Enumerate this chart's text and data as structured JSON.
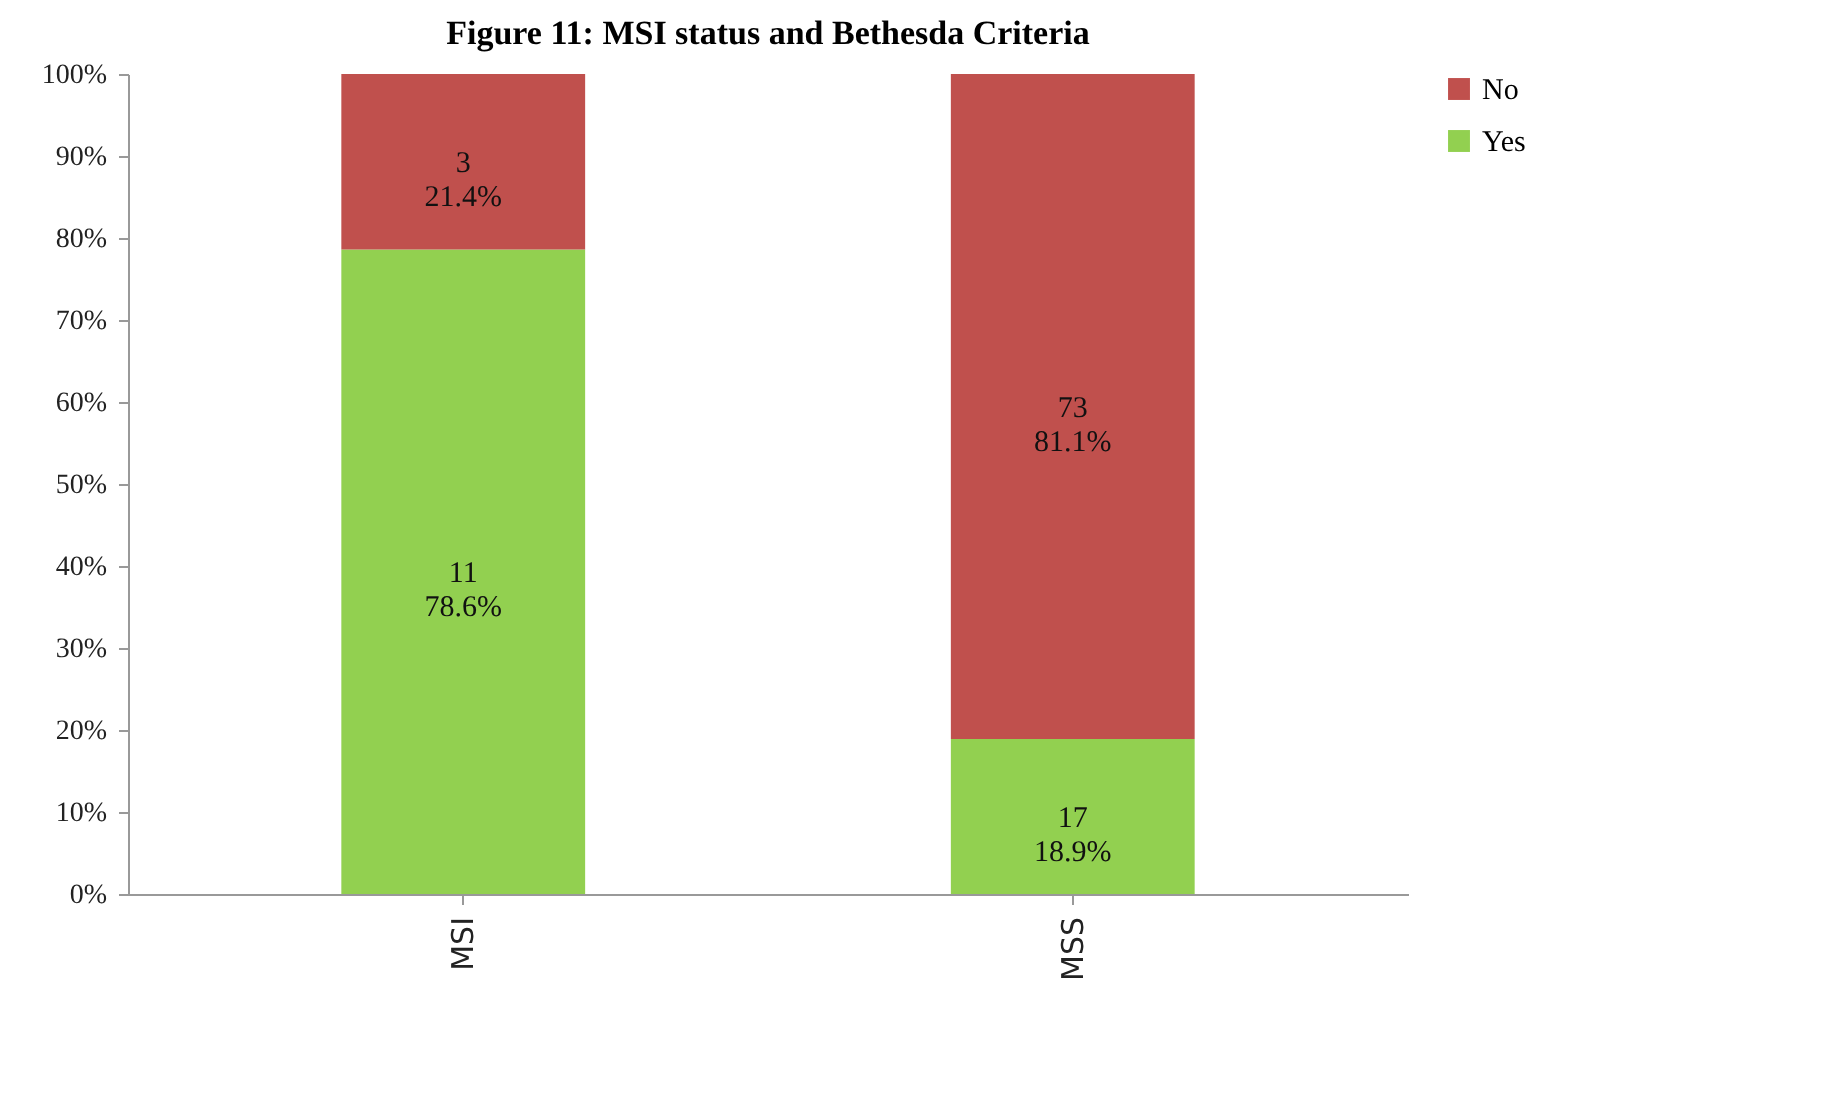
{
  "chart_data": {
    "type": "bar",
    "title": "Figure 11: MSI status and Bethesda Criteria",
    "categories": [
      "MSI",
      "MSS"
    ],
    "stacked": true,
    "legend": "right",
    "grid": false,
    "ylim": [
      0,
      100
    ],
    "yticks": [
      {
        "value": 0,
        "label": "0%"
      },
      {
        "value": 10,
        "label": "10%"
      },
      {
        "value": 20,
        "label": "20%"
      },
      {
        "value": 30,
        "label": "30%"
      },
      {
        "value": 40,
        "label": "40%"
      },
      {
        "value": 50,
        "label": "50%"
      },
      {
        "value": 60,
        "label": "60%"
      },
      {
        "value": 70,
        "label": "70%"
      },
      {
        "value": 80,
        "label": "80%"
      },
      {
        "value": 90,
        "label": "90%"
      },
      {
        "value": 100,
        "label": "100%"
      }
    ],
    "series": [
      {
        "name": "Yes",
        "color": "#92d050",
        "values": [
          78.6,
          18.9
        ],
        "value_labels": [
          "11\n78.6%",
          "17\n18.9%"
        ]
      },
      {
        "name": "No",
        "color": "#c0504d",
        "values": [
          21.4,
          81.1
        ],
        "value_labels": [
          "3\n21.4%",
          "73\n81.1%"
        ]
      }
    ]
  }
}
